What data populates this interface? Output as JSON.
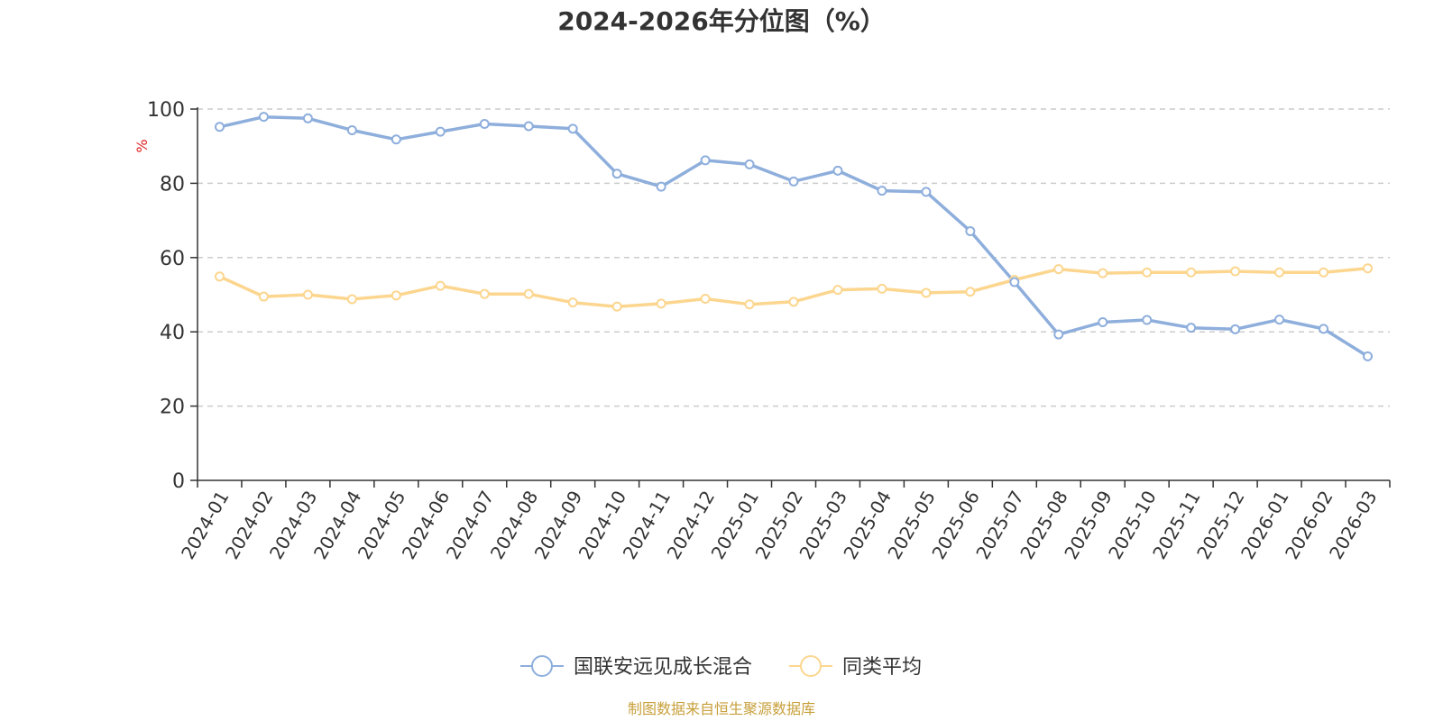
{
  "chart_data": {
    "type": "line",
    "title": "2024-2026年分位图（%）",
    "ylabel": "%",
    "ylim": [
      0,
      100
    ],
    "yticks": [
      0,
      20,
      40,
      60,
      80,
      100
    ],
    "grid": true,
    "legend_position": "bottom-center",
    "categories": [
      "2024-01",
      "2024-02",
      "2024-03",
      "2024-04",
      "2024-05",
      "2024-06",
      "2024-07",
      "2024-08",
      "2024-09",
      "2024-10",
      "2024-11",
      "2024-12",
      "2025-01",
      "2025-02",
      "2025-03",
      "2025-04",
      "2025-05",
      "2025-06",
      "2025-07",
      "2025-08",
      "2025-09",
      "2025-10",
      "2025-11",
      "2025-12",
      "2026-01",
      "2026-02",
      "2026-03"
    ],
    "series": [
      {
        "name": "国联安远见成长混合",
        "color": "#8eaedc",
        "values": [
          95.2,
          97.9,
          97.5,
          94.3,
          91.8,
          93.9,
          96.0,
          95.4,
          94.7,
          82.6,
          79.1,
          86.2,
          85.1,
          80.5,
          83.4,
          78.0,
          77.7,
          67.1,
          53.4,
          39.3,
          42.6,
          43.2,
          41.1,
          40.7,
          43.3,
          40.8,
          33.4
        ]
      },
      {
        "name": "同类平均",
        "color": "#fcd68f",
        "values": [
          54.9,
          49.5,
          50.0,
          48.8,
          49.8,
          52.4,
          50.2,
          50.2,
          47.9,
          46.8,
          47.6,
          48.9,
          47.4,
          48.1,
          51.3,
          51.6,
          50.5,
          50.8,
          54.0,
          56.9,
          55.8,
          56.0,
          56.0,
          56.3,
          56.0,
          56.0,
          57.1
        ]
      }
    ]
  },
  "source": {
    "text": "制图数据来自恒生聚源数据库",
    "color": "#c8a03c"
  },
  "ylabel_color": "#e02020"
}
